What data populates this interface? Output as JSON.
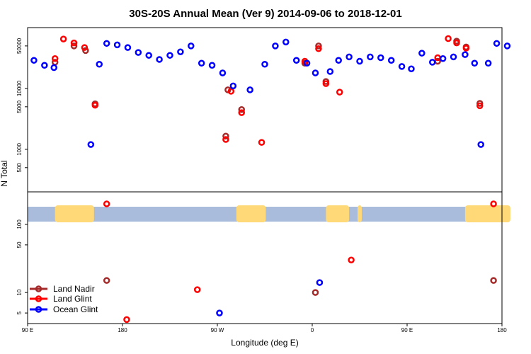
{
  "chart_data": {
    "type": "scatter",
    "title": "30S-20S Annual Mean (Ver 9)   2014-09-06 to 2018-12-01",
    "xlabel": "Longitude (deg E)",
    "ylabel": "N Total",
    "x_ticks": [
      {
        "value": 90,
        "label": "90 E"
      },
      {
        "value": 180,
        "label": "180"
      },
      {
        "value": 270,
        "label": "90 W"
      },
      {
        "value": 360,
        "label": "0"
      },
      {
        "value": 450,
        "label": "90 E"
      },
      {
        "value": 540,
        "label": "180"
      }
    ],
    "xlim": [
      90,
      540
    ],
    "upper_panel": {
      "scale": "log",
      "ylim": [
        200,
        100000
      ],
      "y_ticks": [
        {
          "value": 500,
          "label": "500"
        },
        {
          "value": 1000,
          "label": "1000"
        },
        {
          "value": 5000,
          "label": "5000"
        },
        {
          "value": 10000,
          "label": "10000"
        },
        {
          "value": 50000,
          "label": "50000"
        }
      ]
    },
    "lower_panel": {
      "scale": "log",
      "ylim": [
        3.5,
        300
      ],
      "y_ticks": [
        {
          "value": 5,
          "label": "5"
        },
        {
          "value": 10,
          "label": "10"
        },
        {
          "value": 50,
          "label": "50"
        },
        {
          "value": 100,
          "label": "100"
        }
      ],
      "land_mask_bands_lon": [
        [
          116,
          153
        ],
        [
          288,
          316
        ],
        [
          373,
          395
        ],
        [
          403,
          407
        ],
        [
          505,
          548
        ]
      ]
    },
    "series": [
      {
        "name": "Land Nadir",
        "color": "#a52a2a",
        "points_upper": [
          [
            116,
            27000
          ],
          [
            134,
            50000
          ],
          [
            145,
            42000
          ],
          [
            154,
            5600
          ],
          [
            353,
            26000
          ],
          [
            366,
            50000
          ],
          [
            373,
            13000
          ],
          [
            479,
            28000
          ],
          [
            497,
            60000
          ],
          [
            506,
            48000
          ],
          [
            519,
            5700
          ],
          [
            278,
            1650
          ],
          [
            280,
            9500
          ],
          [
            293,
            4500
          ]
        ],
        "points_lower": [
          [
            165,
            15
          ],
          [
            363,
            10
          ],
          [
            532,
            15
          ]
        ]
      },
      {
        "name": "Land Glint",
        "color": "#ff0000",
        "points_upper": [
          [
            116,
            31000
          ],
          [
            124,
            65000
          ],
          [
            134,
            56000
          ],
          [
            144,
            47000
          ],
          [
            154,
            5300
          ],
          [
            278,
            1450
          ],
          [
            283,
            9000
          ],
          [
            293,
            4000
          ],
          [
            312,
            1300
          ],
          [
            353,
            28000
          ],
          [
            366,
            45000
          ],
          [
            373,
            12000
          ],
          [
            386,
            8700
          ],
          [
            479,
            32000
          ],
          [
            489,
            66000
          ],
          [
            497,
            56000
          ],
          [
            506,
            46000
          ],
          [
            519,
            5200
          ]
        ],
        "points_lower": [
          [
            165,
            200
          ],
          [
            184,
            4
          ],
          [
            251,
            11
          ],
          [
            397,
            30
          ],
          [
            532,
            200
          ]
        ]
      },
      {
        "name": "Ocean Glint",
        "color": "#0000ff",
        "points_upper": [
          [
            96,
            29000
          ],
          [
            106,
            24000
          ],
          [
            115,
            22000
          ],
          [
            150,
            1200
          ],
          [
            158,
            25000
          ],
          [
            165,
            55000
          ],
          [
            175,
            52000
          ],
          [
            185,
            47000
          ],
          [
            195,
            39000
          ],
          [
            205,
            35000
          ],
          [
            215,
            30000
          ],
          [
            225,
            35000
          ],
          [
            235,
            40000
          ],
          [
            245,
            50000
          ],
          [
            255,
            26000
          ],
          [
            265,
            24000
          ],
          [
            275,
            18000
          ],
          [
            285,
            11000
          ],
          [
            301,
            9500
          ],
          [
            315,
            25000
          ],
          [
            325,
            50000
          ],
          [
            335,
            58000
          ],
          [
            345,
            29000
          ],
          [
            355,
            26000
          ],
          [
            363,
            18000
          ],
          [
            377,
            19000
          ],
          [
            385,
            29000
          ],
          [
            395,
            33000
          ],
          [
            405,
            28000
          ],
          [
            415,
            33000
          ],
          [
            425,
            32000
          ],
          [
            435,
            29000
          ],
          [
            445,
            23000
          ],
          [
            454,
            21000
          ],
          [
            464,
            38000
          ],
          [
            474,
            27000
          ],
          [
            484,
            31000
          ],
          [
            494,
            33000
          ],
          [
            505,
            36000
          ],
          [
            514,
            26000
          ],
          [
            520,
            1200
          ],
          [
            527,
            26000
          ],
          [
            535,
            55000
          ],
          [
            545,
            50000
          ]
        ],
        "points_lower": [
          [
            272,
            5
          ],
          [
            367,
            14
          ]
        ]
      }
    ],
    "legend": {
      "position": "bottom-left",
      "entries": [
        "Land Nadir",
        "Land Glint",
        "Ocean Glint"
      ]
    }
  }
}
